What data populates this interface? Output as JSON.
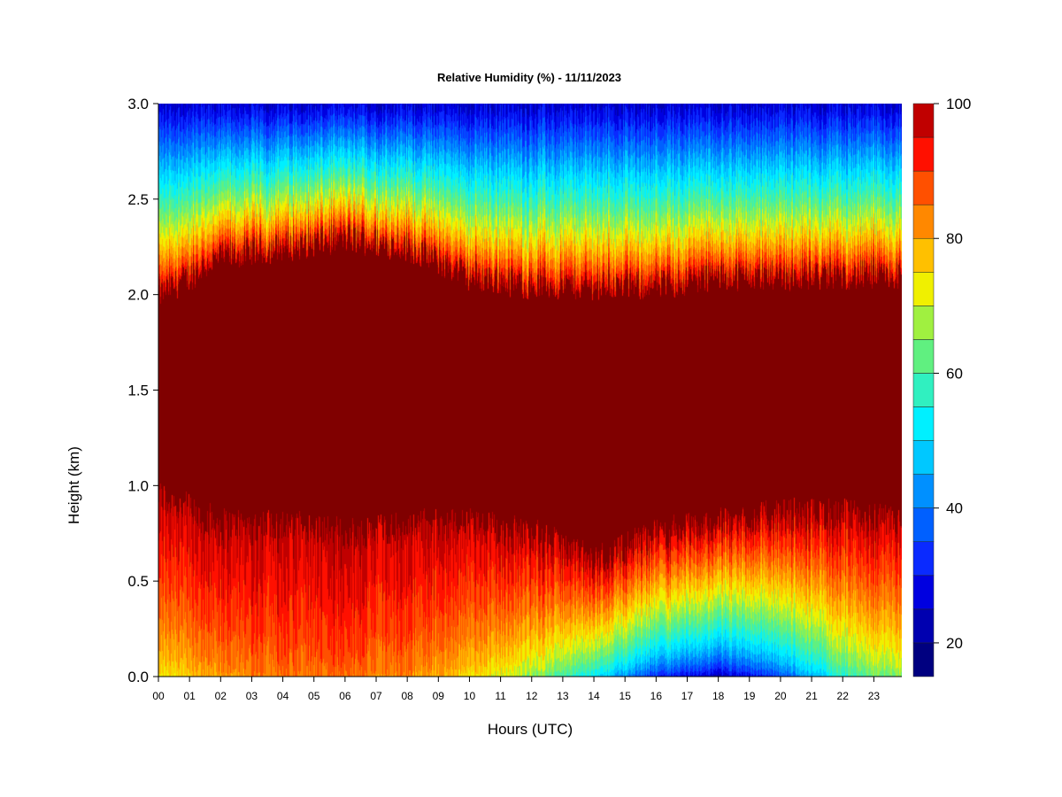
{
  "chart_data": {
    "type": "heatmap",
    "title": "Relative Humidity (%) - 11/11/2023",
    "xlabel": "Hours (UTC)",
    "ylabel": "Height (km)",
    "x_ticks": [
      "00",
      "01",
      "02",
      "03",
      "04",
      "05",
      "06",
      "07",
      "08",
      "09",
      "10",
      "11",
      "12",
      "13",
      "14",
      "15",
      "16",
      "17",
      "18",
      "19",
      "20",
      "21",
      "22",
      "23"
    ],
    "xlim": [
      0,
      23.9
    ],
    "y_ticks": [
      "0.0",
      "0.5",
      "1.0",
      "1.5",
      "2.0",
      "2.5",
      "3.0"
    ],
    "ylim": [
      0,
      3.0
    ],
    "colorbar": {
      "ticks": [
        "20",
        "40",
        "60",
        "80",
        "100"
      ],
      "range": [
        15,
        100
      ],
      "levels": [
        15,
        20,
        25,
        30,
        35,
        40,
        45,
        50,
        55,
        60,
        65,
        70,
        75,
        80,
        85,
        90,
        95,
        100
      ],
      "colors": [
        "#000080",
        "#0000b0",
        "#0000e0",
        "#0a2aff",
        "#0060ff",
        "#0090ff",
        "#00c8ff",
        "#00f0ff",
        "#30f0c0",
        "#60f080",
        "#a0f040",
        "#f0f000",
        "#ffc000",
        "#ff8800",
        "#ff5000",
        "#ff1000",
        "#c00000",
        "#800000"
      ]
    },
    "profiles": [
      {
        "hour": 0,
        "top_of_saturated_layer_km": 2.0,
        "bottom_of_saturated_layer_km": 0.95,
        "surface_rh": 72
      },
      {
        "hour": 2,
        "top_of_saturated_layer_km": 2.2,
        "bottom_of_saturated_layer_km": 0.8,
        "surface_rh": 80
      },
      {
        "hour": 4,
        "top_of_saturated_layer_km": 2.25,
        "bottom_of_saturated_layer_km": 0.8,
        "surface_rh": 84
      },
      {
        "hour": 6,
        "top_of_saturated_layer_km": 2.3,
        "bottom_of_saturated_layer_km": 0.75,
        "surface_rh": 84
      },
      {
        "hour": 8,
        "top_of_saturated_layer_km": 2.25,
        "bottom_of_saturated_layer_km": 0.8,
        "surface_rh": 82
      },
      {
        "hour": 10,
        "top_of_saturated_layer_km": 2.1,
        "bottom_of_saturated_layer_km": 0.8,
        "surface_rh": 75
      },
      {
        "hour": 12,
        "top_of_saturated_layer_km": 2.05,
        "bottom_of_saturated_layer_km": 0.75,
        "surface_rh": 65
      },
      {
        "hour": 14,
        "top_of_saturated_layer_km": 2.05,
        "bottom_of_saturated_layer_km": 0.6,
        "surface_rh": 50
      },
      {
        "hour": 16,
        "top_of_saturated_layer_km": 2.05,
        "bottom_of_saturated_layer_km": 0.75,
        "surface_rh": 30
      },
      {
        "hour": 18,
        "top_of_saturated_layer_km": 2.1,
        "bottom_of_saturated_layer_km": 0.8,
        "surface_rh": 22
      },
      {
        "hour": 20,
        "top_of_saturated_layer_km": 2.1,
        "bottom_of_saturated_layer_km": 0.85,
        "surface_rh": 33
      },
      {
        "hour": 22,
        "top_of_saturated_layer_km": 2.1,
        "bottom_of_saturated_layer_km": 0.85,
        "surface_rh": 55
      },
      {
        "hour": 23.9,
        "top_of_saturated_layer_km": 2.1,
        "bottom_of_saturated_layer_km": 0.8,
        "surface_rh": 65
      }
    ],
    "top_rh_at_3km": 25,
    "grid": false
  }
}
